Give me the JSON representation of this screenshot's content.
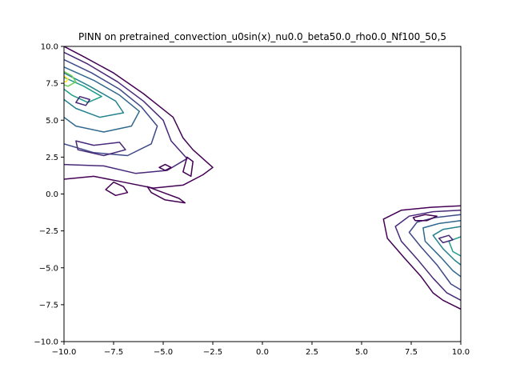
{
  "chart_data": {
    "type": "contour",
    "title": "PINN on pretrained_convection_u0sin(x)_nu0.0_beta50.0_rho0.0_Nf100_50,5",
    "xlabel": "",
    "ylabel": "",
    "xlim": [
      -10,
      10
    ],
    "ylim": [
      -10,
      10
    ],
    "x_ticks": [
      -10.0,
      -7.5,
      -5.0,
      -2.5,
      0.0,
      2.5,
      5.0,
      7.5,
      10.0
    ],
    "y_ticks": [
      -10.0,
      -7.5,
      -5.0,
      -2.5,
      0.0,
      2.5,
      5.0,
      7.5,
      10.0
    ],
    "x_tick_labels": [
      "−10.0",
      "−7.5",
      "−5.0",
      "−2.5",
      "0.0",
      "2.5",
      "5.0",
      "7.5",
      "10.0"
    ],
    "y_tick_labels": [
      "−10.0",
      "−7.5",
      "−5.0",
      "−2.5",
      "0.0",
      "2.5",
      "5.0",
      "7.5",
      "10.0"
    ],
    "grid": false,
    "colormap": "viridis",
    "level_colors": [
      "#440154",
      "#482878",
      "#3e4989",
      "#31688e",
      "#26828e",
      "#1f9e89",
      "#35b779",
      "#6ece58",
      "#b5de2b",
      "#fde725"
    ],
    "regions": [
      {
        "name": "upper-left",
        "contours": [
          {
            "level": 0,
            "points": [
              [
                -10,
                10
              ],
              [
                -9,
                9.3
              ],
              [
                -7.5,
                8.2
              ],
              [
                -6,
                6.8
              ],
              [
                -4.5,
                5.2
              ],
              [
                -4,
                3.8
              ],
              [
                -3.5,
                3
              ],
              [
                -2.5,
                1.8
              ],
              [
                -3,
                1.3
              ],
              [
                -4,
                0.6
              ],
              [
                -5.5,
                0.4
              ],
              [
                -7,
                0.8
              ],
              [
                -8.5,
                1.2
              ],
              [
                -10,
                1
              ]
            ]
          },
          {
            "level": 1,
            "points": [
              [
                -10,
                9.6
              ],
              [
                -8.8,
                8.8
              ],
              [
                -7.3,
                7.6
              ],
              [
                -6,
                6.3
              ],
              [
                -5,
                5
              ],
              [
                -4.6,
                3.6
              ],
              [
                -3.8,
                2.4
              ],
              [
                -4.8,
                1.6
              ],
              [
                -6.4,
                1.4
              ],
              [
                -8,
                1.9
              ],
              [
                -10,
                2
              ]
            ]
          },
          {
            "level": 2,
            "points": [
              [
                -10,
                9.1
              ],
              [
                -8.6,
                8.2
              ],
              [
                -7.2,
                7.1
              ],
              [
                -6.1,
                5.9
              ],
              [
                -5.3,
                4.6
              ],
              [
                -5.6,
                3.4
              ],
              [
                -6.8,
                2.6
              ],
              [
                -8.5,
                2.8
              ],
              [
                -10,
                3.4
              ]
            ]
          },
          {
            "level": 3,
            "points": [
              [
                -10,
                8.6
              ],
              [
                -8.5,
                7.7
              ],
              [
                -7.2,
                6.7
              ],
              [
                -6.2,
                5.6
              ],
              [
                -6.6,
                4.6
              ],
              [
                -8,
                4.2
              ],
              [
                -9.4,
                4.6
              ],
              [
                -10,
                5.2
              ]
            ]
          },
          {
            "level": 4,
            "points": [
              [
                -10,
                8.2
              ],
              [
                -8.7,
                7.3
              ],
              [
                -7.4,
                6.3
              ],
              [
                -7,
                5.5
              ],
              [
                -8.2,
                5.2
              ],
              [
                -9.4,
                5.8
              ],
              [
                -10,
                6.4
              ]
            ]
          },
          {
            "level": 5,
            "points": [
              [
                -10,
                7.9
              ],
              [
                -9,
                7.3
              ],
              [
                -8.1,
                6.6
              ],
              [
                -8.8,
                6.2
              ],
              [
                -9.6,
                6.7
              ],
              [
                -10,
                7.1
              ]
            ]
          },
          {
            "level": 7,
            "points": [
              [
                -10,
                8.3
              ],
              [
                -9.6,
                8.0
              ],
              [
                -9.4,
                7.6
              ],
              [
                -9.8,
                7.3
              ],
              [
                -10,
                7.4
              ]
            ]
          },
          {
            "level": 9,
            "points": [
              [
                -10,
                8.0
              ],
              [
                -9.8,
                7.8
              ],
              [
                -9.9,
                7.6
              ],
              [
                -10,
                7.6
              ]
            ]
          }
        ],
        "islands": [
          {
            "level": 0,
            "points": [
              [
                -7.5,
                0.8
              ],
              [
                -7,
                0.5
              ],
              [
                -6.8,
                0.1
              ],
              [
                -7.4,
                -0.1
              ],
              [
                -7.9,
                0.3
              ]
            ]
          },
          {
            "level": 0,
            "points": [
              [
                -5.8,
                0.5
              ],
              [
                -5,
                0.1
              ],
              [
                -4.2,
                -0.3
              ],
              [
                -3.9,
                -0.6
              ],
              [
                -4.9,
                -0.4
              ],
              [
                -5.6,
                0.1
              ]
            ]
          },
          {
            "level": 0,
            "points": [
              [
                -4.9,
                2
              ],
              [
                -4.6,
                1.8
              ],
              [
                -4.9,
                1.6
              ],
              [
                -5.2,
                1.8
              ]
            ]
          },
          {
            "level": 0,
            "points": [
              [
                -3.8,
                2.5
              ],
              [
                -3.5,
                2.2
              ],
              [
                -3.6,
                1.2
              ],
              [
                -4,
                1.5
              ]
            ]
          },
          {
            "level": 1,
            "points": [
              [
                -9.4,
                3.6
              ],
              [
                -8.5,
                3.3
              ],
              [
                -7.2,
                3.5
              ],
              [
                -6.9,
                3
              ],
              [
                -8,
                2.6
              ],
              [
                -9.3,
                3
              ]
            ]
          },
          {
            "level": 1,
            "points": [
              [
                -9.2,
                6.6
              ],
              [
                -8.7,
                6.4
              ],
              [
                -8.9,
                6.0
              ],
              [
                -9.4,
                6.2
              ]
            ]
          }
        ]
      },
      {
        "name": "lower-right",
        "contours": [
          {
            "level": 0,
            "points": [
              [
                10,
                -0.8
              ],
              [
                8.5,
                -0.9
              ],
              [
                7,
                -1.1
              ],
              [
                6.1,
                -1.7
              ],
              [
                6.3,
                -3
              ],
              [
                7.2,
                -4.4
              ],
              [
                8,
                -5.6
              ],
              [
                8.6,
                -6.7
              ],
              [
                9.1,
                -7.2
              ],
              [
                10,
                -7.8
              ]
            ]
          },
          {
            "level": 1,
            "points": [
              [
                10,
                -1.1
              ],
              [
                8.6,
                -1.2
              ],
              [
                7.4,
                -1.5
              ],
              [
                6.7,
                -2.2
              ],
              [
                7,
                -3.2
              ],
              [
                7.8,
                -4.4
              ],
              [
                8.6,
                -5.7
              ],
              [
                9.3,
                -6.7
              ],
              [
                10,
                -7.2
              ]
            ]
          },
          {
            "level": 2,
            "points": [
              [
                10,
                -1.4
              ],
              [
                8.7,
                -1.6
              ],
              [
                7.8,
                -1.9
              ],
              [
                7.4,
                -2.6
              ],
              [
                8,
                -3.6
              ],
              [
                8.8,
                -4.8
              ],
              [
                9.5,
                -6.1
              ],
              [
                10,
                -6.5
              ]
            ]
          },
          {
            "level": 3,
            "points": [
              [
                10,
                -1.8
              ],
              [
                8.9,
                -2.0
              ],
              [
                8.1,
                -2.3
              ],
              [
                8.2,
                -3.2
              ],
              [
                9,
                -4.3
              ],
              [
                9.6,
                -5.2
              ],
              [
                10,
                -5.6
              ]
            ]
          },
          {
            "level": 4,
            "points": [
              [
                10,
                -2.2
              ],
              [
                9.1,
                -2.4
              ],
              [
                8.6,
                -2.8
              ],
              [
                9.1,
                -3.7
              ],
              [
                9.7,
                -4.5
              ],
              [
                10,
                -4.8
              ]
            ]
          },
          {
            "level": 5,
            "points": [
              [
                10,
                -2.9
              ],
              [
                9.4,
                -3.2
              ],
              [
                9.6,
                -3.9
              ],
              [
                10,
                -4.2
              ]
            ]
          }
        ],
        "islands": [
          {
            "level": 0,
            "points": [
              [
                7.6,
                -1.6
              ],
              [
                8.2,
                -1.4
              ],
              [
                8.8,
                -1.5
              ],
              [
                8.3,
                -1.8
              ],
              [
                7.7,
                -1.8
              ]
            ]
          },
          {
            "level": 1,
            "points": [
              [
                8.9,
                -3.0
              ],
              [
                9.4,
                -2.8
              ],
              [
                9.6,
                -3.1
              ],
              [
                9.1,
                -3.3
              ]
            ]
          }
        ]
      }
    ]
  }
}
